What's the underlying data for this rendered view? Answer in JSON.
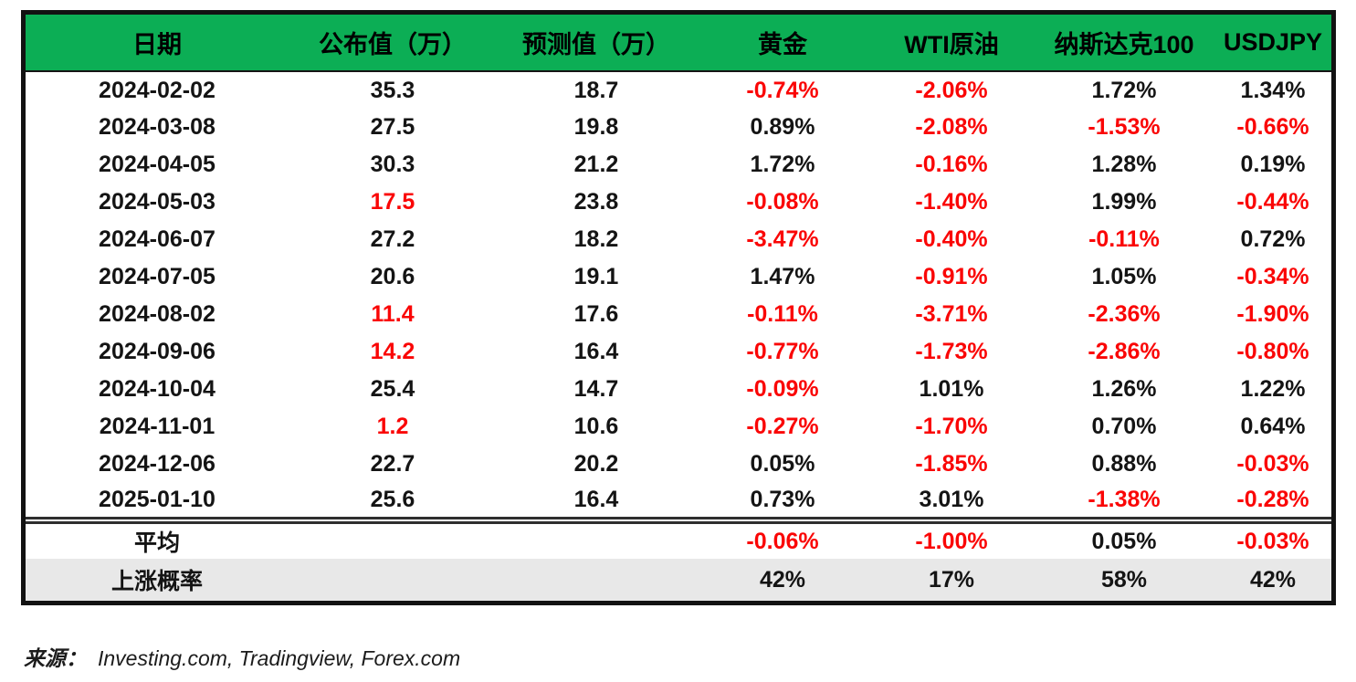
{
  "colors": {
    "header_green": "#0cae55",
    "negative_red": "#fa0606",
    "text_black": "#141414",
    "summary_row_gray": "#e8e8e8",
    "border_black": "#121212"
  },
  "chart_data": {
    "type": "table",
    "columns": [
      "日期",
      "公布值（万）",
      "预测值（万）",
      "黄金",
      "WTI原油",
      "纳斯达克100",
      "USDJPY"
    ],
    "rows": [
      {
        "cells": [
          "2024-02-02",
          "35.3",
          "18.7",
          "-0.74%",
          "-2.06%",
          "1.72%",
          "1.34%"
        ],
        "red": [
          false,
          false,
          false,
          true,
          true,
          false,
          false
        ]
      },
      {
        "cells": [
          "2024-03-08",
          "27.5",
          "19.8",
          "0.89%",
          "-2.08%",
          "-1.53%",
          "-0.66%"
        ],
        "red": [
          false,
          false,
          false,
          false,
          true,
          true,
          true
        ]
      },
      {
        "cells": [
          "2024-04-05",
          "30.3",
          "21.2",
          "1.72%",
          "-0.16%",
          "1.28%",
          "0.19%"
        ],
        "red": [
          false,
          false,
          false,
          false,
          true,
          false,
          false
        ]
      },
      {
        "cells": [
          "2024-05-03",
          "17.5",
          "23.8",
          "-0.08%",
          "-1.40%",
          "1.99%",
          "-0.44%"
        ],
        "red": [
          false,
          true,
          false,
          true,
          true,
          false,
          true
        ]
      },
      {
        "cells": [
          "2024-06-07",
          "27.2",
          "18.2",
          "-3.47%",
          "-0.40%",
          "-0.11%",
          "0.72%"
        ],
        "red": [
          false,
          false,
          false,
          true,
          true,
          true,
          false
        ]
      },
      {
        "cells": [
          "2024-07-05",
          "20.6",
          "19.1",
          "1.47%",
          "-0.91%",
          "1.05%",
          "-0.34%"
        ],
        "red": [
          false,
          false,
          false,
          false,
          true,
          false,
          true
        ]
      },
      {
        "cells": [
          "2024-08-02",
          "11.4",
          "17.6",
          "-0.11%",
          "-3.71%",
          "-2.36%",
          "-1.90%"
        ],
        "red": [
          false,
          true,
          false,
          true,
          true,
          true,
          true
        ]
      },
      {
        "cells": [
          "2024-09-06",
          "14.2",
          "16.4",
          "-0.77%",
          "-1.73%",
          "-2.86%",
          "-0.80%"
        ],
        "red": [
          false,
          true,
          false,
          true,
          true,
          true,
          true
        ]
      },
      {
        "cells": [
          "2024-10-04",
          "25.4",
          "14.7",
          "-0.09%",
          "1.01%",
          "1.26%",
          "1.22%"
        ],
        "red": [
          false,
          false,
          false,
          true,
          false,
          false,
          false
        ]
      },
      {
        "cells": [
          "2024-11-01",
          "1.2",
          "10.6",
          "-0.27%",
          "-1.70%",
          "0.70%",
          "0.64%"
        ],
        "red": [
          false,
          true,
          false,
          true,
          true,
          false,
          false
        ]
      },
      {
        "cells": [
          "2024-12-06",
          "22.7",
          "20.2",
          "0.05%",
          "-1.85%",
          "0.88%",
          "-0.03%"
        ],
        "red": [
          false,
          false,
          false,
          false,
          true,
          false,
          true
        ]
      },
      {
        "cells": [
          "2025-01-10",
          "25.6",
          "16.4",
          "0.73%",
          "3.01%",
          "-1.38%",
          "-0.28%"
        ],
        "red": [
          false,
          false,
          false,
          false,
          false,
          true,
          true
        ]
      }
    ],
    "summary_rows": [
      {
        "cells": [
          "平均",
          "",
          "",
          "-0.06%",
          "-1.00%",
          "0.05%",
          "-0.03%"
        ],
        "red": [
          false,
          false,
          false,
          true,
          true,
          false,
          true
        ]
      },
      {
        "cells": [
          "上涨概率",
          "",
          "",
          "42%",
          "17%",
          "58%",
          "42%"
        ],
        "red": [
          false,
          false,
          false,
          false,
          false,
          false,
          false
        ]
      }
    ]
  },
  "footer": {
    "source_label": "来源：",
    "source_text": "Investing.com, Tradingview, Forex.com"
  }
}
